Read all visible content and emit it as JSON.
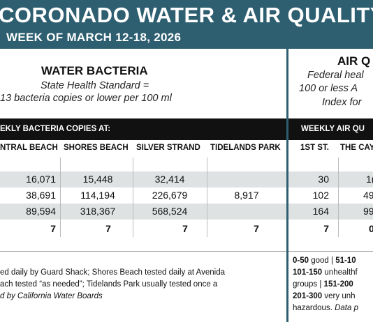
{
  "header": {
    "title": "CORONADO WATER & AIR QUALITY R",
    "week": "WEEK OF MARCH 12-18, 2026"
  },
  "water": {
    "heading": "WATER BACTERIA",
    "standard_line1": "State Health Standard  =",
    "standard_line2": "13 bacteria copies or lower per 100 ml",
    "bar_label": "EKLY BACTERIA COPIES AT:",
    "columns": [
      "NTRAL BEACH",
      "SHORES BEACH",
      "SILVER STRAND",
      "TIDELANDS PARK"
    ],
    "rows": [
      [
        "16,071",
        "15,448",
        "32,414",
        ""
      ],
      [
        "38,691",
        "114,194",
        "226,679",
        "8,917"
      ],
      [
        "89,594",
        "318,367",
        "568,524",
        ""
      ],
      [
        "7",
        "7",
        "7",
        "7"
      ]
    ],
    "footnote_line1": "ed daily by Guard Shack; Shores Beach tested daily at Avenida",
    "footnote_line2": "ach tested “as needed”; Tidelands Park usually tested once a",
    "footnote_line3": "d by California Water Boards"
  },
  "air": {
    "heading": "AIR Q",
    "standard_line1": "Federal heal",
    "standard_line2": "100 or less A",
    "standard_line3": "Index for",
    "bar_label": "WEEKLY AIR QU",
    "columns": [
      "1ST ST.",
      "THE CAY"
    ],
    "rows": [
      [
        "30",
        "1("
      ],
      [
        "102",
        "49"
      ],
      [
        "164",
        "99"
      ],
      [
        "7",
        "0"
      ]
    ],
    "legend_line1_a": "0-50",
    "legend_line1_b": " good | ",
    "legend_line1_c": "51-10",
    "legend_line2_a": "101-150",
    "legend_line2_b": " unhealthf",
    "legend_line3_a": "groups | ",
    "legend_line3_b": "151-200",
    "legend_line4_a": "201-300",
    "legend_line4_b": " very unh",
    "legend_line5_a": "hazardous. ",
    "legend_line5_b": "Data p"
  },
  "colors": {
    "header": "#2e5f70",
    "bar": "#111111",
    "shade": "#dfe2e3"
  }
}
